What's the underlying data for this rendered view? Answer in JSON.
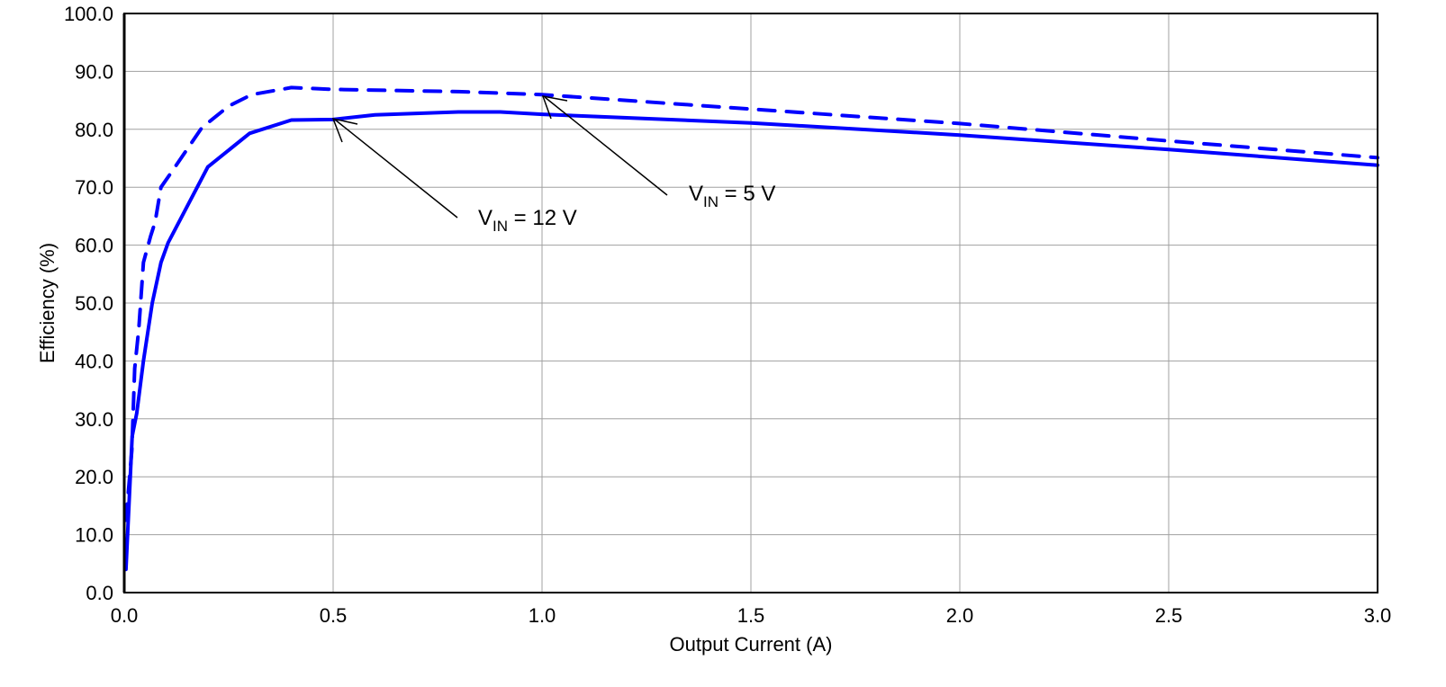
{
  "chart_data": {
    "type": "line",
    "xlabel": "Output Current (A)",
    "ylabel": "Efficiency (%)",
    "xlim": [
      0,
      3.0
    ],
    "ylim": [
      0,
      100
    ],
    "x_ticks": [
      "0.0",
      "0.5",
      "1.0",
      "1.5",
      "2.0",
      "2.5",
      "3.0"
    ],
    "y_ticks": [
      "0.0",
      "10.0",
      "20.0",
      "30.0",
      "40.0",
      "50.0",
      "60.0",
      "70.0",
      "80.0",
      "90.0",
      "100.0"
    ],
    "grid": true,
    "series": [
      {
        "name": "VIN = 12 V",
        "style": "solid",
        "color": "#0000ff",
        "x": [
          0.004,
          0.019,
          0.03,
          0.046,
          0.067,
          0.088,
          0.105,
          0.2,
          0.3,
          0.4,
          0.5,
          0.6,
          0.8,
          0.9,
          1.0,
          1.5,
          2.0,
          2.5,
          3.0
        ],
        "y": [
          4,
          27,
          31,
          40,
          50,
          57,
          60.4,
          73.5,
          79.3,
          81.6,
          81.7,
          82.5,
          83,
          83,
          82.6,
          81.1,
          79,
          76.5,
          73.8
        ]
      },
      {
        "name": "VIN = 5 V",
        "style": "dashed",
        "color": "#0000ff",
        "x": [
          0.004,
          0.018,
          0.025,
          0.035,
          0.046,
          0.063,
          0.074,
          0.088,
          0.116,
          0.186,
          0.25,
          0.305,
          0.4,
          0.5,
          0.8,
          1.0,
          1.5,
          2.0,
          2.5,
          3.0
        ],
        "y": [
          12.5,
          24.5,
          38.7,
          45.6,
          57,
          61.5,
          64,
          70,
          72.9,
          80.3,
          84,
          86,
          87.2,
          86.9,
          86.5,
          86,
          83.5,
          81,
          78,
          75.1
        ]
      }
    ],
    "annotations": [
      {
        "main": "V",
        "sub": "IN",
        "rest": " = 12 V",
        "x": 0.5,
        "y": 81.7
      },
      {
        "main": "V",
        "sub": "IN",
        "rest": " = 5 V",
        "x": 1.0,
        "y": 86.0
      }
    ]
  }
}
